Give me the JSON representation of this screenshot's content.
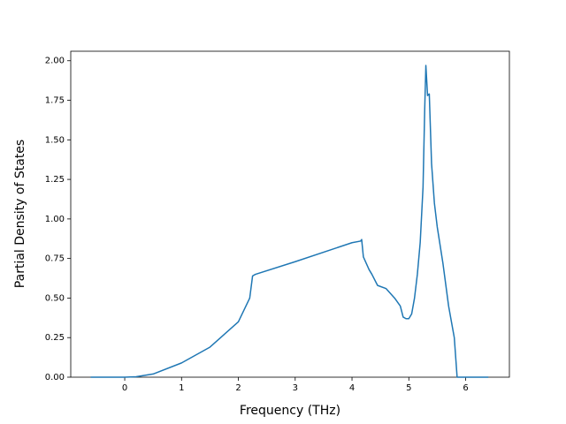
{
  "chart_data": {
    "type": "line",
    "xlabel": "Frequency (THz)",
    "ylabel": "Partial Density of States",
    "color": "#1f77b4",
    "x": [
      -0.6,
      0,
      0.2,
      0.5,
      1,
      1.5,
      2,
      2.2,
      2.25,
      2.3,
      3,
      4,
      4.15,
      4.17,
      4.2,
      4.3,
      4.35,
      4.45,
      4.6,
      4.75,
      4.85,
      4.9,
      4.95,
      5.0,
      5.05,
      5.1,
      5.15,
      5.2,
      5.25,
      5.28,
      5.3,
      5.33,
      5.36,
      5.4,
      5.45,
      5.5,
      5.6,
      5.7,
      5.8,
      5.85,
      6.0,
      6.4
    ],
    "values": [
      0,
      0,
      0.003,
      0.02,
      0.09,
      0.19,
      0.35,
      0.5,
      0.64,
      0.65,
      0.73,
      0.85,
      0.86,
      0.87,
      0.76,
      0.68,
      0.65,
      0.58,
      0.56,
      0.5,
      0.45,
      0.38,
      0.37,
      0.37,
      0.4,
      0.5,
      0.65,
      0.85,
      1.2,
      1.7,
      1.97,
      1.78,
      1.79,
      1.35,
      1.1,
      0.95,
      0.72,
      0.45,
      0.25,
      0,
      0,
      0
    ],
    "xlim": [
      -0.95,
      6.77
    ],
    "xticks": [
      0,
      1,
      2,
      3,
      4,
      5,
      6
    ],
    "ylim": [
      0,
      2.06
    ],
    "yticks": [
      {
        "value": 0,
        "label": "0.00"
      },
      {
        "value": 0.25,
        "label": "0.25"
      },
      {
        "value": 0.5,
        "label": "0.50"
      },
      {
        "value": 0.75,
        "label": "0.75"
      },
      {
        "value": 1,
        "label": "1.00"
      },
      {
        "value": 1.25,
        "label": "1.25"
      },
      {
        "value": 1.5,
        "label": "1.50"
      },
      {
        "value": 1.75,
        "label": "1.75"
      },
      {
        "value": 2,
        "label": "2.00"
      }
    ]
  }
}
